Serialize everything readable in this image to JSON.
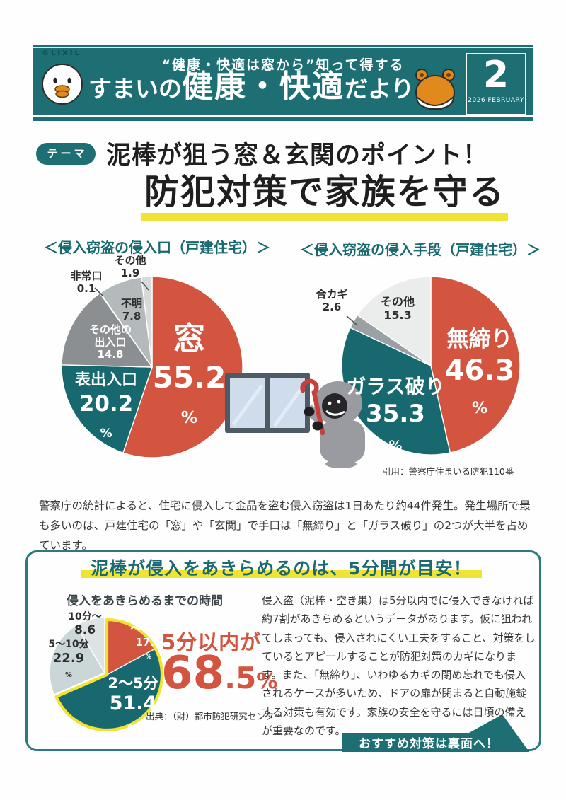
{
  "pct_sign": "%",
  "colors": {
    "banner_teal": "#1d6f74",
    "pie_teal": "#17696f",
    "pie_red": "#d3543f",
    "highlight_yellow": "#f1e236",
    "heading_teal": "#1b6a70"
  },
  "header": {
    "brand": "©LIXIL",
    "tagline": "“健康・快適は窓から”知って得する",
    "title_part1": "すまいの",
    "title_part2": "健康・快適",
    "title_part3": "だより",
    "issue_number": "2",
    "issue_date": "2026 FEBRUARY"
  },
  "theme": {
    "badge": "テーマ",
    "line1": "泥棒が狙う窓＆玄関のポイント！",
    "line2": "防犯対策で家族を守る"
  },
  "intro_paragraph": "警察庁の統計によると、住宅に侵入して金品を盗む侵入窃盗は1日あたり約44件発生。発生場所で最も多いのは、戸建住宅の「窓」や「玄関」で手口は「無締り」と「ガラス破り」の2つが大半を占めています。",
  "bottom_box": {
    "heading": "泥棒が侵入をあきらめるのは、5分間が目安！",
    "stat_prefix": "5分以内が",
    "stat_int": "68",
    "stat_frac": ".5",
    "body": "侵入盗（泥棒・空き巣）は5分以内でに侵入できなければ約7割があきらめるというデータがあります。仮に狙われてしまっても、侵入されにくい工夫をすること、対策をしているとアピールすることが防犯対策のカギになります。また、「無締り」、いわゆるカギの閉め忘れでも侵入されるケースが多いため、ドアの扉が閉まると自動施錠する対策も有効です。家族の安全を守るには日頃の備えが重要なのです。",
    "banner": "おすすめ対策は裏面へ！"
  },
  "chart_data": [
    {
      "type": "pie",
      "title": "＜侵入窃盗の侵入口（戸建住宅）＞",
      "unit": "%",
      "slices": [
        {
          "label": "窓",
          "value": 55.2,
          "value_text": "55.2",
          "color": "#d3543f"
        },
        {
          "label": "表出入口",
          "value": 20.2,
          "value_text": "20.2",
          "color": "#17696f"
        },
        {
          "label": "その他の出入口",
          "label_l1": "その他の",
          "label_l2": "出入口",
          "value": 14.8,
          "value_text": "14.8",
          "color": "#8b8f92"
        },
        {
          "label": "非常口",
          "value": 0.1,
          "value_text": "0.1",
          "color": "#c6cacb"
        },
        {
          "label": "不明",
          "value": 7.8,
          "value_text": "7.8",
          "color": "#b4b9bb"
        },
        {
          "label": "その他",
          "value": 1.9,
          "value_text": "1.9",
          "color": "#d7dadb"
        }
      ]
    },
    {
      "type": "pie",
      "title": "＜侵入窃盗の侵入手段（戸建住宅）＞",
      "unit": "%",
      "source": "引用：警察庁住まいる防犯110番",
      "slices": [
        {
          "label": "無締り",
          "value": 46.3,
          "value_text": "46.3",
          "color": "#d3543f"
        },
        {
          "label": "ガラス破り",
          "value": 35.3,
          "value_text": "35.3",
          "color": "#17696f"
        },
        {
          "label": "合カギ",
          "value": 2.6,
          "value_text": "2.6",
          "color": "#9aa0a3"
        },
        {
          "label": "その他",
          "value": 15.3,
          "value_text": "15.3",
          "color": "#ebeded"
        }
      ]
    },
    {
      "type": "pie",
      "title": "侵入をあきらめるまでの時間",
      "unit": "%",
      "source": "出典：（財）都市防犯研究センター",
      "highlight": {
        "label": "5分以内が",
        "value": 68.5,
        "value_text": "68.5%"
      },
      "slices": [
        {
          "label": "～2分",
          "value": 17.1,
          "value_text": "17.1",
          "color": "#d3543f"
        },
        {
          "label": "2～5分",
          "value": 51.4,
          "value_text": "51.4",
          "color": "#17696f"
        },
        {
          "label": "5～10分",
          "value": 22.9,
          "value_text": "22.9",
          "color": "#cbd6d9"
        },
        {
          "label": "10分～",
          "value": 8.6,
          "value_text": "8.6",
          "color": "#dde3e4"
        }
      ]
    }
  ]
}
